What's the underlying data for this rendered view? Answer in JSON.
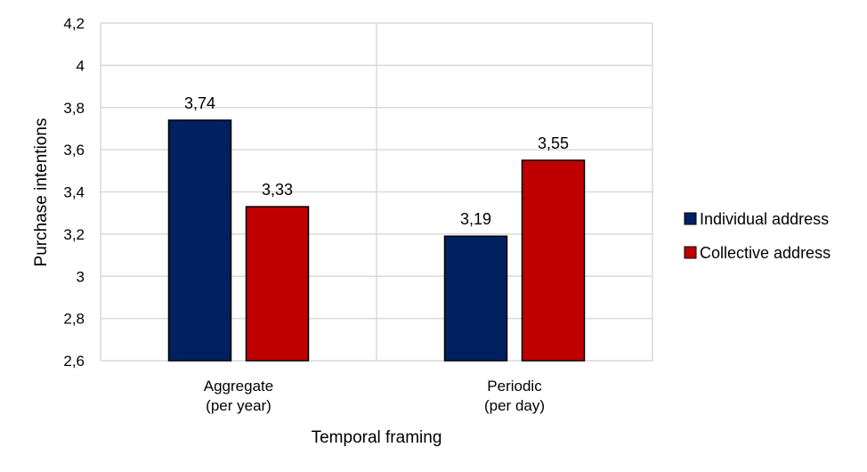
{
  "chart_data": {
    "type": "bar",
    "title": "",
    "xlabel": "Temporal framing",
    "ylabel": "Purchase intentions",
    "ylim": [
      2.6,
      4.2
    ],
    "yticks": [
      "2,6",
      "2,8",
      "3",
      "3,2",
      "3,4",
      "3,6",
      "3,8",
      "4",
      "4,2"
    ],
    "ytick_values": [
      2.6,
      2.8,
      3.0,
      3.2,
      3.4,
      3.6,
      3.8,
      4.0,
      4.2
    ],
    "grid": true,
    "legend_position": "right",
    "categories": [
      {
        "line1": "Aggregate",
        "line2": "(per year)"
      },
      {
        "line1": "Periodic",
        "line2": "(per day)"
      }
    ],
    "series": [
      {
        "name": "Individual address",
        "color": "#002060",
        "values": [
          3.74,
          3.19
        ],
        "labels": [
          "3,74",
          "3,19"
        ]
      },
      {
        "name": "Collective address",
        "color": "#C00000",
        "values": [
          3.33,
          3.55
        ],
        "labels": [
          "3,33",
          "3,55"
        ]
      }
    ]
  }
}
